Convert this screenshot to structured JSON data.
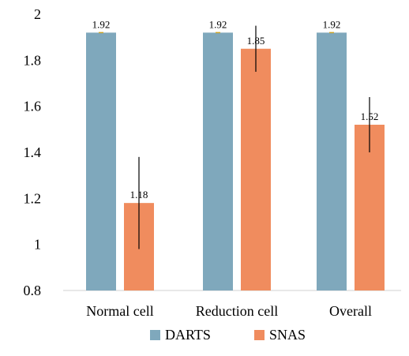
{
  "chart_data": {
    "type": "bar",
    "categories": [
      "Normal cell",
      "Reduction cell",
      "Overall"
    ],
    "series": [
      {
        "name": "DARTS",
        "color": "#7fa8bc",
        "values": [
          1.92,
          1.92,
          1.92
        ],
        "errors": [
          0.0,
          0.0,
          0.0
        ],
        "data_labels": [
          "1.92",
          "1.92",
          "1.92"
        ]
      },
      {
        "name": "SNAS",
        "color": "#f08c5e",
        "values": [
          1.18,
          1.85,
          1.52
        ],
        "errors": [
          0.2,
          0.1,
          0.12
        ],
        "data_labels": [
          "1.18",
          "1.85",
          "1.52"
        ]
      }
    ],
    "ylim": [
      0.8,
      2.0
    ],
    "yticks": [
      0.8,
      1,
      1.2,
      1.4,
      1.6,
      1.8,
      2
    ],
    "ytick_labels": [
      "0.8",
      "1",
      "1.2",
      "1.4",
      "1.6",
      "1.8",
      "2"
    ],
    "grid": false,
    "legend_position": "bottom",
    "error_bar_color": "#000000"
  }
}
